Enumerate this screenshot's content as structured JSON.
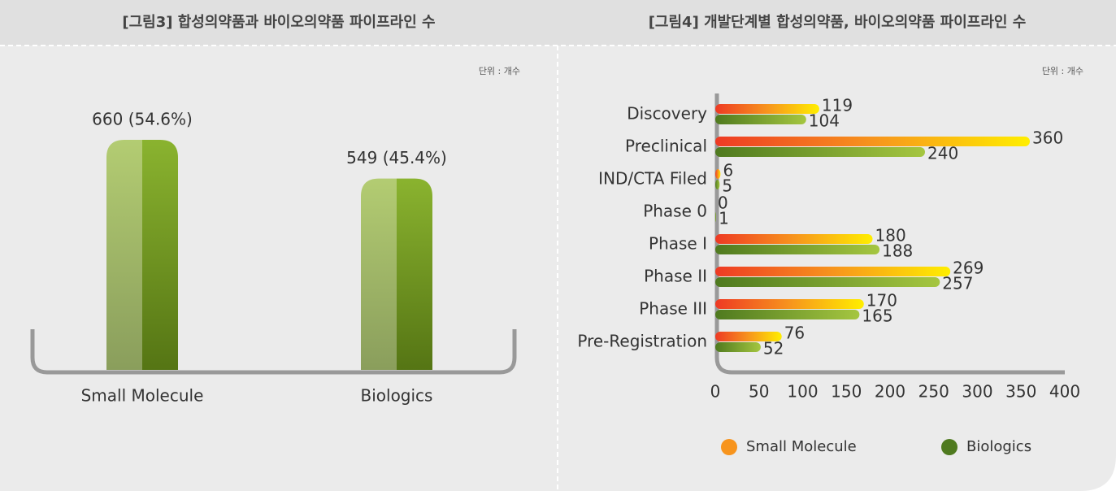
{
  "chart_data": [
    {
      "type": "bar",
      "title": "[그림3] 합성의약품과 바이오의약품 파이프라인 수",
      "unit": "단위 : 개수",
      "categories": [
        "Small Molecule",
        "Biologics"
      ],
      "values": [
        660,
        549
      ],
      "value_labels": [
        "660 (54.6%)",
        "549 (45.4%)"
      ],
      "color": "#8ab32f"
    },
    {
      "type": "barh",
      "title": "[그림4] 개발단계별 합성의약품, 바이오의약품 파이프라인 수",
      "unit": "단위 : 개수",
      "categories": [
        "Discovery",
        "Preclinical",
        "IND/CTA Filed",
        "Phase 0",
        "Phase I",
        "Phase II",
        "Phase III",
        "Pre-Registration"
      ],
      "series": [
        {
          "name": "Small Molecule",
          "color": "#f7941d",
          "values": [
            119,
            360,
            6,
            0,
            180,
            269,
            170,
            76
          ]
        },
        {
          "name": "Biologics",
          "color": "#4f7a1f",
          "values": [
            104,
            240,
            5,
            1,
            188,
            257,
            165,
            52
          ]
        }
      ],
      "xlim": [
        0,
        400
      ],
      "xticks": [
        0,
        50,
        100,
        150,
        200,
        250,
        300,
        350,
        400
      ],
      "legend": "bottom"
    }
  ]
}
